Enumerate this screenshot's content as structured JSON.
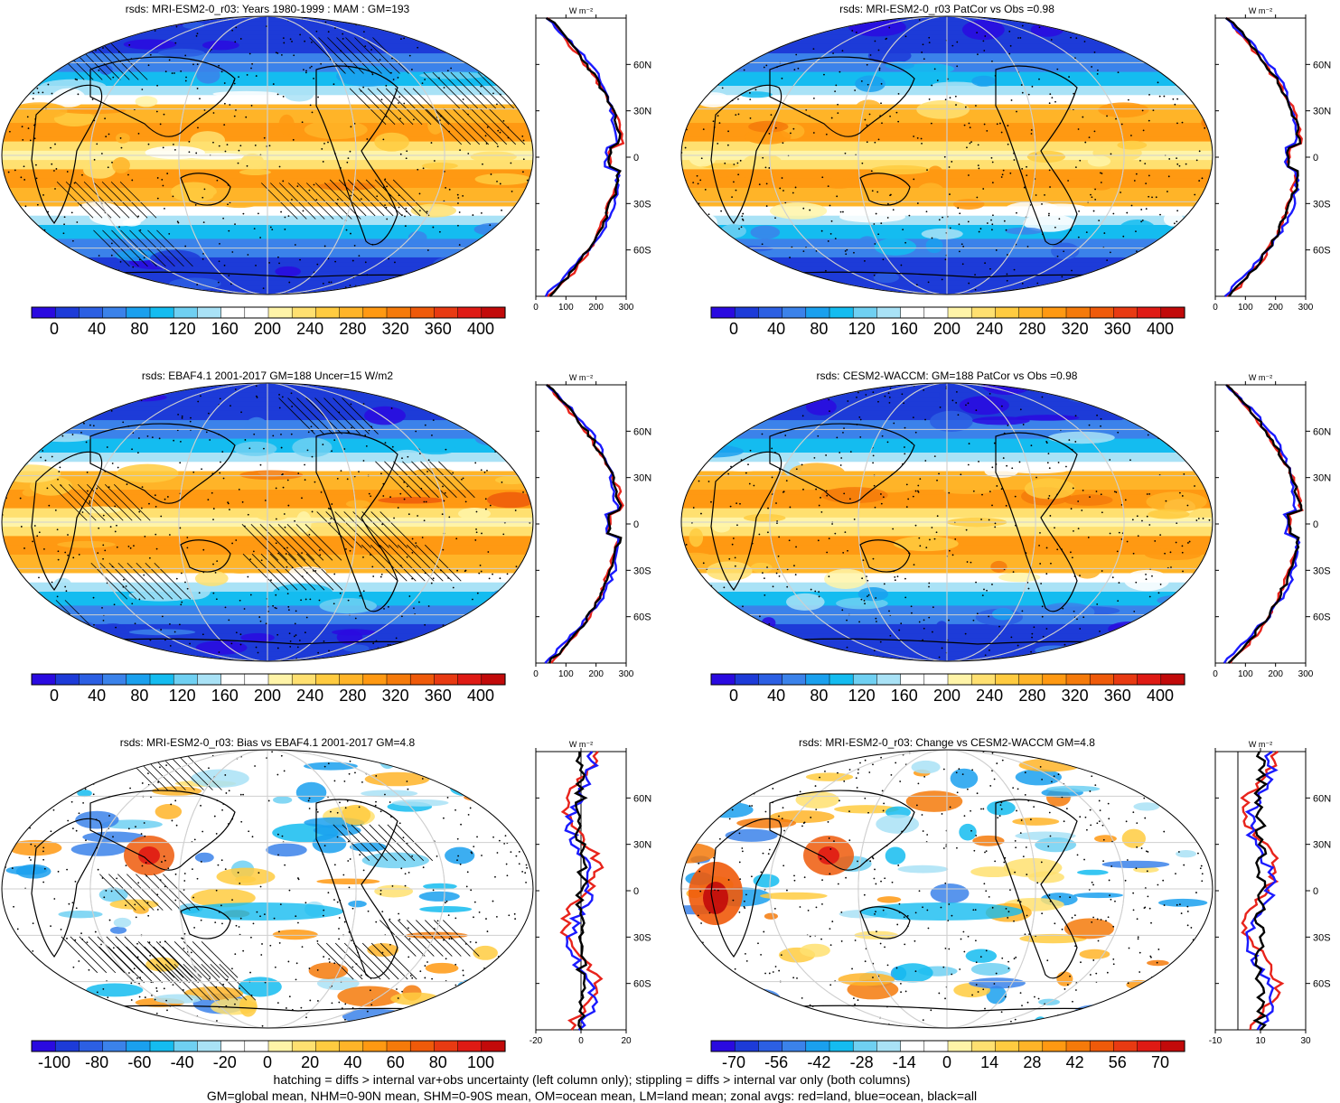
{
  "panels": [
    {
      "title": "rsds: MRI-ESM2-0_r03: Years 1980-1999 : MAM : GM=193",
      "colorbar_labels": [
        "0",
        "40",
        "80",
        "120",
        "160",
        "200",
        "240",
        "280",
        "320",
        "360",
        "400"
      ],
      "zonal_xticks": [
        "0",
        "100",
        "200",
        "300"
      ],
      "zonal_units": "W m⁻²",
      "kind": "abs"
    },
    {
      "title": "rsds: MRI-ESM2-0_r03 PatCor vs Obs =0.98",
      "colorbar_labels": [
        "0",
        "40",
        "80",
        "120",
        "160",
        "200",
        "240",
        "280",
        "320",
        "360",
        "400"
      ],
      "zonal_xticks": [
        "0",
        "100",
        "200",
        "300"
      ],
      "zonal_units": "W m⁻²",
      "kind": "abs"
    },
    {
      "title": "rsds: EBAF4.1 2001-2017 GM=188 Uncer=15 W/m2",
      "colorbar_labels": [
        "0",
        "40",
        "80",
        "120",
        "160",
        "200",
        "240",
        "280",
        "320",
        "360",
        "400"
      ],
      "zonal_xticks": [
        "0",
        "100",
        "200",
        "300"
      ],
      "zonal_units": "W m⁻²",
      "kind": "abs"
    },
    {
      "title": "rsds: CESM2-WACCM: GM=188 PatCor vs Obs =0.98",
      "colorbar_labels": [
        "0",
        "40",
        "80",
        "120",
        "160",
        "200",
        "240",
        "280",
        "320",
        "360",
        "400"
      ],
      "zonal_xticks": [
        "0",
        "100",
        "200",
        "300"
      ],
      "zonal_units": "W m⁻²",
      "kind": "abs"
    },
    {
      "title": "rsds: MRI-ESM2-0_r03: Bias vs EBAF4.1 2001-2017 GM=4.8",
      "colorbar_labels": [
        "-100",
        "-80",
        "-60",
        "-40",
        "-20",
        "0",
        "20",
        "40",
        "60",
        "80",
        "100"
      ],
      "zonal_xticks": [
        "-20",
        "0",
        "20"
      ],
      "zonal_units": "W m⁻²",
      "kind": "diff"
    },
    {
      "title": "rsds: MRI-ESM2-0_r03: Change vs CESM2-WACCM GM=4.8",
      "colorbar_labels": [
        "-70",
        "-56",
        "-42",
        "-28",
        "-14",
        "0",
        "14",
        "28",
        "42",
        "56",
        "70"
      ],
      "zonal_xticks": [
        "-10",
        "10",
        "30"
      ],
      "zonal_units": "W m⁻²",
      "kind": "diff"
    }
  ],
  "lat_labels": [
    "60N",
    "30N",
    "0",
    "30S",
    "60S"
  ],
  "colors": {
    "land": "#e8231b",
    "ocean": "#1a1aff",
    "all": "#000000",
    "palette": [
      "#2a0ae0",
      "#1d3bd8",
      "#2c5fe3",
      "#3b82ea",
      "#1aa0ee",
      "#14bcf0",
      "#6fd0f2",
      "#a9e2f6",
      "#ffffff",
      "#ffffff",
      "#fff4a8",
      "#ffe070",
      "#ffcb40",
      "#ffb428",
      "#ff9912",
      "#f57a0a",
      "#ef5a0a",
      "#e83a12",
      "#df1a14",
      "#c20a0a"
    ]
  },
  "footer": {
    "line1": "hatching = diffs > internal var+obs uncertainty (left column only); stippling = diffs > internal var only (both columns)",
    "line2": "GM=global mean, NHM=0-90N mean, SHM=0-90S mean, OM=ocean mean, LM=land mean; zonal avgs: red=land, blue=ocean, black=all"
  }
}
